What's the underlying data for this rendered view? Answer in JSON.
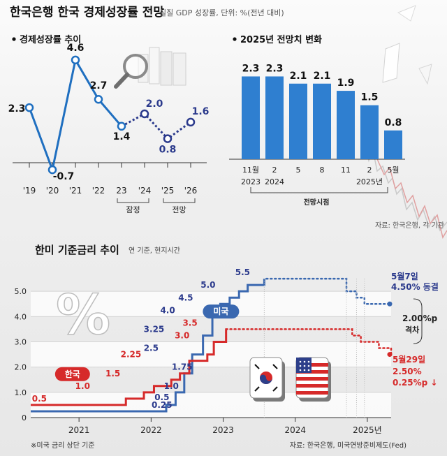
{
  "header": {
    "title": "한국은행 한국 경제성장률 전망",
    "subtitle": "실질 GDP 성장률, 단위: %(전년 대비)"
  },
  "colors": {
    "blue": "#1f6fc0",
    "bar_blue": "#2f7fd0",
    "navy": "#2b3a8c",
    "usa": "#3a68b0",
    "korea": "#d62a2a"
  },
  "chart_data": [
    {
      "type": "line",
      "title": "경제성장률 추이",
      "categories": [
        "'19",
        "'20",
        "'21",
        "'22",
        "23",
        "'24",
        "'25",
        "'26"
      ],
      "values": [
        2.3,
        -0.7,
        4.6,
        2.7,
        1.4,
        2.0,
        0.8,
        1.6
      ],
      "value_labels": [
        "2.3",
        "-0.7",
        "4.6",
        "2.7",
        "1.4",
        "2.0",
        "0.8",
        "1.6"
      ],
      "solid_through_index": 4,
      "bracket_labels": [
        {
          "label": "잠정",
          "from": 4,
          "to": 5
        },
        {
          "label": "전망",
          "from": 6,
          "to": 7
        }
      ],
      "ylim": [
        -1,
        5
      ]
    },
    {
      "type": "bar",
      "title": "2025년 전망치 변화",
      "categories": [
        "11월",
        "2",
        "5",
        "8",
        "11",
        "2",
        "5월"
      ],
      "years": [
        "2023",
        "2024",
        "",
        "",
        "",
        "2025년",
        ""
      ],
      "values": [
        2.3,
        2.3,
        2.1,
        2.1,
        1.9,
        1.5,
        0.8
      ],
      "value_labels": [
        "2.3",
        "2.3",
        "2.1",
        "2.1",
        "1.9",
        "1.5",
        "0.8"
      ],
      "xlabel": "전망시점",
      "ylim": [
        0,
        2.6
      ],
      "source": "자료: 한국은행, 각 기관"
    },
    {
      "type": "line",
      "title": "한미 기준금리 추이",
      "subtitle": "연 기준, 현지시간",
      "x_ticks": [
        "2021",
        "2022",
        "2023",
        "2024",
        "2025년"
      ],
      "y_ticks": [
        "0",
        "1.0",
        "2.0",
        "3.0",
        "4.0",
        "5.0"
      ],
      "ylim": [
        0,
        6
      ],
      "xlim": [
        2020.33,
        2025.33
      ],
      "series": [
        {
          "name": "미국",
          "color": "#3a68b0",
          "x": [
            2020.33,
            2022.21,
            2022.21,
            2022.34,
            2022.34,
            2022.46,
            2022.46,
            2022.57,
            2022.57,
            2022.72,
            2022.72,
            2022.85,
            2022.85,
            2022.96,
            2022.96,
            2023.09,
            2023.09,
            2023.22,
            2023.22,
            2023.34,
            2023.34,
            2023.57,
            2023.57,
            2024.71,
            2024.71,
            2024.85,
            2024.85,
            2024.96,
            2024.96,
            2025.33
          ],
          "y": [
            0.25,
            0.25,
            0.5,
            0.5,
            1.0,
            1.0,
            1.75,
            1.75,
            2.5,
            2.5,
            3.25,
            3.25,
            4.0,
            4.0,
            4.5,
            4.5,
            4.75,
            4.75,
            5.0,
            5.0,
            5.25,
            5.25,
            5.5,
            5.5,
            5.0,
            5.0,
            4.75,
            4.75,
            4.5,
            4.5
          ],
          "dashed_from_x": 2023.57
        },
        {
          "name": "한국",
          "color": "#d62a2a",
          "x": [
            2020.33,
            2021.65,
            2021.65,
            2021.9,
            2021.9,
            2022.04,
            2022.04,
            2022.28,
            2022.28,
            2022.4,
            2022.4,
            2022.53,
            2022.53,
            2022.78,
            2022.78,
            2022.87,
            2022.87,
            2023.04,
            2023.04,
            2024.79,
            2024.79,
            2024.91,
            2024.91,
            2025.16,
            2025.16,
            2025.33,
            2025.33
          ],
          "y": [
            0.5,
            0.5,
            0.75,
            0.75,
            1.0,
            1.0,
            1.25,
            1.25,
            1.5,
            1.5,
            1.75,
            1.75,
            2.25,
            2.25,
            2.5,
            2.5,
            3.0,
            3.0,
            3.5,
            3.5,
            3.25,
            3.25,
            3.0,
            3.0,
            2.75,
            2.75,
            2.5
          ],
          "dashed_from_x": 2023.04
        }
      ],
      "annotations": {
        "us": [
          {
            "t": "0.25",
            "x": 2022.15,
            "y": 0.25
          },
          {
            "t": "0.5",
            "x": 2022.15,
            "y": 0.55
          },
          {
            "t": "1.0",
            "x": 2022.28,
            "y": 1.0
          },
          {
            "t": "1.75",
            "x": 2022.43,
            "y": 1.75
          },
          {
            "t": "2.5",
            "x": 2022.0,
            "y": 2.5
          },
          {
            "t": "3.25",
            "x": 2022.04,
            "y": 3.25
          },
          {
            "t": "4.0",
            "x": 2022.23,
            "y": 4.0
          },
          {
            "t": "4.5",
            "x": 2022.48,
            "y": 4.5
          },
          {
            "t": "5.0",
            "x": 2022.79,
            "y": 5.0
          },
          {
            "t": "5.5",
            "x": 2023.27,
            "y": 5.5
          }
        ],
        "kr": [
          {
            "t": "0.5",
            "x": 2020.45,
            "y": 0.5
          },
          {
            "t": "1.0",
            "x": 2021.05,
            "y": 1.0
          },
          {
            "t": "1.5",
            "x": 2021.47,
            "y": 1.5
          },
          {
            "t": "2.25",
            "x": 2021.72,
            "y": 2.25
          },
          {
            "t": "3.0",
            "x": 2022.43,
            "y": 3.0
          },
          {
            "t": "3.5",
            "x": 2022.54,
            "y": 3.5
          }
        ]
      },
      "end_labels": {
        "us_date": "5월7일",
        "us_value": "4.50% 동결",
        "gap_value": "2.00%p",
        "gap_label": "격차",
        "kr_date": "5월29일",
        "kr_value": "2.50%",
        "kr_change": "0.25%p ↓"
      },
      "footnote": "※미국 금리 상단 기준",
      "source": "자료: 한국은행, 미국연방준비제도(Fed)"
    }
  ]
}
